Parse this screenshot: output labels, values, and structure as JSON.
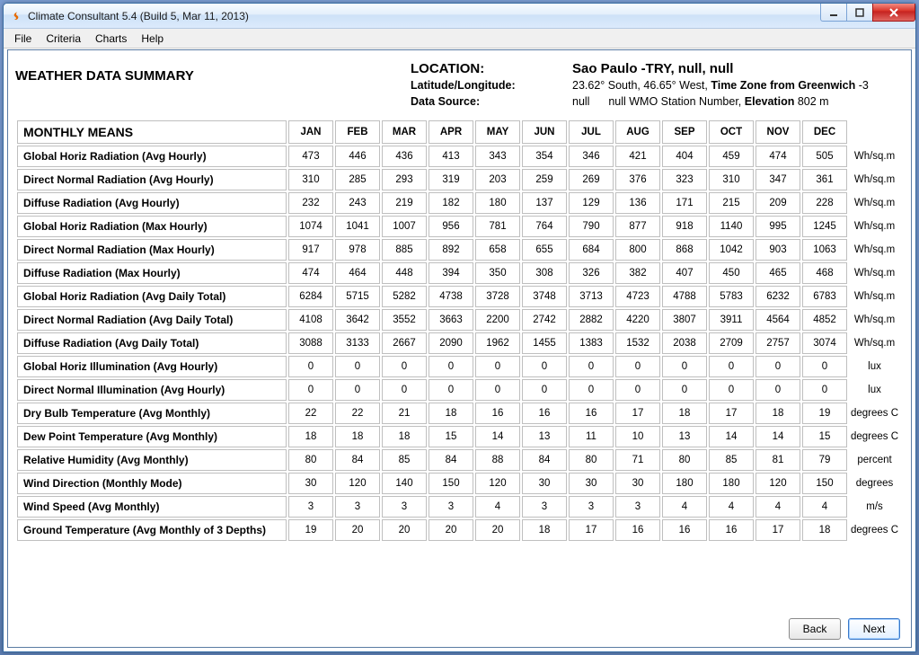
{
  "window": {
    "title": "Climate Consultant 5.4 (Build 5, Mar 11, 2013)"
  },
  "menu": {
    "items": [
      "File",
      "Criteria",
      "Charts",
      "Help"
    ]
  },
  "header": {
    "summary_title": "WEATHER DATA SUMMARY",
    "location_label": "LOCATION:",
    "location_value": "Sao Paulo -TRY, null, null",
    "latlon_label": "Latitude/Longitude:",
    "lat_value": "23.62° South, 46.65° West, ",
    "tz_bold": "Time Zone from Greenwich ",
    "tz_value": "-3",
    "datasource_label": "Data Source:",
    "datasource_value1": "null",
    "datasource_value2": "null WMO Station Number, ",
    "elev_bold": "Elevation ",
    "elev_value": "802 m"
  },
  "table": {
    "heading": "MONTHLY MEANS",
    "columns": [
      "JAN",
      "FEB",
      "MAR",
      "APR",
      "MAY",
      "JUN",
      "JUL",
      "AUG",
      "SEP",
      "OCT",
      "NOV",
      "DEC"
    ],
    "rows": [
      {
        "label": "Global Horiz Radiation (Avg Hourly)",
        "unit": "Wh/sq.m",
        "v": [
          473,
          446,
          436,
          413,
          343,
          354,
          346,
          421,
          404,
          459,
          474,
          505
        ]
      },
      {
        "label": "Direct Normal Radiation (Avg Hourly)",
        "unit": "Wh/sq.m",
        "v": [
          310,
          285,
          293,
          319,
          203,
          259,
          269,
          376,
          323,
          310,
          347,
          361
        ]
      },
      {
        "label": "Diffuse Radiation (Avg Hourly)",
        "unit": "Wh/sq.m",
        "v": [
          232,
          243,
          219,
          182,
          180,
          137,
          129,
          136,
          171,
          215,
          209,
          228
        ]
      },
      {
        "label": "Global Horiz Radiation (Max Hourly)",
        "unit": "Wh/sq.m",
        "v": [
          1074,
          1041,
          1007,
          956,
          781,
          764,
          790,
          877,
          918,
          1140,
          995,
          1245
        ]
      },
      {
        "label": "Direct Normal Radiation (Max Hourly)",
        "unit": "Wh/sq.m",
        "v": [
          917,
          978,
          885,
          892,
          658,
          655,
          684,
          800,
          868,
          1042,
          903,
          1063
        ]
      },
      {
        "label": "Diffuse Radiation (Max Hourly)",
        "unit": "Wh/sq.m",
        "v": [
          474,
          464,
          448,
          394,
          350,
          308,
          326,
          382,
          407,
          450,
          465,
          468
        ]
      },
      {
        "label": "Global Horiz Radiation (Avg Daily Total)",
        "unit": "Wh/sq.m",
        "v": [
          6284,
          5715,
          5282,
          4738,
          3728,
          3748,
          3713,
          4723,
          4788,
          5783,
          6232,
          6783
        ]
      },
      {
        "label": "Direct Normal Radiation (Avg Daily Total)",
        "unit": "Wh/sq.m",
        "v": [
          4108,
          3642,
          3552,
          3663,
          2200,
          2742,
          2882,
          4220,
          3807,
          3911,
          4564,
          4852
        ]
      },
      {
        "label": "Diffuse Radiation (Avg Daily Total)",
        "unit": "Wh/sq.m",
        "v": [
          3088,
          3133,
          2667,
          2090,
          1962,
          1455,
          1383,
          1532,
          2038,
          2709,
          2757,
          3074
        ]
      },
      {
        "label": "Global Horiz Illumination (Avg Hourly)",
        "unit": "lux",
        "v": [
          0,
          0,
          0,
          0,
          0,
          0,
          0,
          0,
          0,
          0,
          0,
          0
        ]
      },
      {
        "label": "Direct Normal Illumination (Avg Hourly)",
        "unit": "lux",
        "v": [
          0,
          0,
          0,
          0,
          0,
          0,
          0,
          0,
          0,
          0,
          0,
          0
        ]
      },
      {
        "label": "Dry Bulb Temperature (Avg Monthly)",
        "unit": "degrees C",
        "v": [
          22,
          22,
          21,
          18,
          16,
          16,
          16,
          17,
          18,
          17,
          18,
          19
        ]
      },
      {
        "label": "Dew Point Temperature (Avg Monthly)",
        "unit": "degrees C",
        "v": [
          18,
          18,
          18,
          15,
          14,
          13,
          11,
          10,
          13,
          14,
          14,
          15
        ]
      },
      {
        "label": "Relative Humidity (Avg Monthly)",
        "unit": "percent",
        "v": [
          80,
          84,
          85,
          84,
          88,
          84,
          80,
          71,
          80,
          85,
          81,
          79
        ]
      },
      {
        "label": "Wind Direction (Monthly Mode)",
        "unit": "degrees",
        "v": [
          30,
          120,
          140,
          150,
          120,
          30,
          30,
          30,
          180,
          180,
          120,
          150
        ]
      },
      {
        "label": "Wind Speed (Avg Monthly)",
        "unit": "m/s",
        "v": [
          3,
          3,
          3,
          3,
          4,
          3,
          3,
          3,
          4,
          4,
          4,
          4
        ]
      },
      {
        "label": "Ground Temperature (Avg Monthly of 3 Depths)",
        "unit": "degrees C",
        "v": [
          19,
          20,
          20,
          20,
          20,
          18,
          17,
          16,
          16,
          16,
          17,
          18
        ]
      }
    ]
  },
  "buttons": {
    "back": "Back",
    "next": "Next"
  },
  "colors": {
    "window_border": "#3a6ea5",
    "cell_border": "#bfbfbf",
    "close_btn": "#d93025",
    "primary_border": "#3a78c8"
  }
}
